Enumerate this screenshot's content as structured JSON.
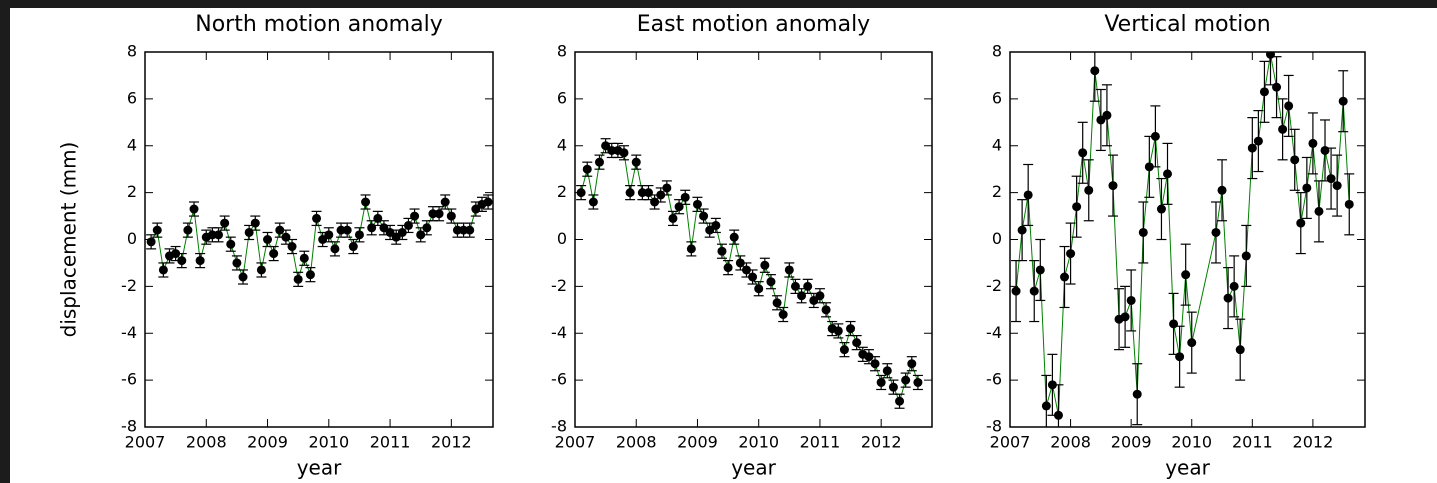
{
  "chart_data": [
    {
      "type": "errorbar",
      "title": "North motion anomaly",
      "xlabel": "year",
      "ylabel": "displacement (mm)",
      "x": [
        2007.1,
        2007.2,
        2007.3,
        2007.4,
        2007.5,
        2007.6,
        2007.7,
        2007.8,
        2007.9,
        2008.0,
        2008.1,
        2008.2,
        2008.3,
        2008.4,
        2008.5,
        2008.6,
        2008.7,
        2008.8,
        2008.9,
        2009.0,
        2009.1,
        2009.2,
        2009.3,
        2009.4,
        2009.5,
        2009.6,
        2009.7,
        2009.8,
        2009.9,
        2010.0,
        2010.1,
        2010.2,
        2010.3,
        2010.4,
        2010.5,
        2010.6,
        2010.7,
        2010.8,
        2010.9,
        2011.0,
        2011.1,
        2011.2,
        2011.3,
        2011.4,
        2011.5,
        2011.6,
        2011.7,
        2011.8,
        2011.9,
        2012.0,
        2012.1,
        2012.2,
        2012.3,
        2012.4,
        2012.5,
        2012.6
      ],
      "values": [
        -0.1,
        0.4,
        -1.3,
        -0.7,
        -0.6,
        -0.9,
        0.4,
        1.3,
        -0.9,
        0.1,
        0.2,
        0.2,
        0.7,
        -0.2,
        -1.0,
        -1.6,
        0.3,
        0.7,
        -1.3,
        0.0,
        -0.6,
        0.4,
        0.1,
        -0.3,
        -1.7,
        -0.8,
        -1.5,
        0.9,
        0.0,
        0.2,
        -0.4,
        0.4,
        0.4,
        -0.3,
        0.2,
        1.6,
        0.5,
        0.9,
        0.5,
        0.3,
        0.1,
        0.3,
        0.6,
        1.0,
        0.2,
        0.5,
        1.1,
        1.1,
        1.6,
        1.0,
        0.4,
        0.4,
        0.4,
        1.3,
        1.5,
        1.6
      ],
      "error": 0.3,
      "color": "#000000",
      "line_color": "#008000",
      "xlim": [
        2007,
        2012.68
      ],
      "ylim": [
        -8,
        8
      ],
      "xticks": [
        2007,
        2008,
        2009,
        2010,
        2011,
        2012
      ],
      "yticks": [
        -8,
        -6,
        -4,
        -2,
        0,
        2,
        4,
        6,
        8
      ]
    },
    {
      "type": "errorbar",
      "title": "East motion anomaly",
      "xlabel": "year",
      "x": [
        2007.1,
        2007.2,
        2007.3,
        2007.4,
        2007.5,
        2007.6,
        2007.7,
        2007.8,
        2007.9,
        2008.0,
        2008.1,
        2008.2,
        2008.3,
        2008.4,
        2008.5,
        2008.6,
        2008.7,
        2008.8,
        2008.9,
        2009.0,
        2009.1,
        2009.2,
        2009.3,
        2009.4,
        2009.5,
        2009.6,
        2009.7,
        2009.8,
        2009.9,
        2010.0,
        2010.1,
        2010.2,
        2010.3,
        2010.4,
        2010.5,
        2010.6,
        2010.7,
        2010.8,
        2010.9,
        2011.0,
        2011.1,
        2011.2,
        2011.3,
        2011.4,
        2011.5,
        2011.6,
        2011.7,
        2011.8,
        2011.9,
        2012.0,
        2012.1,
        2012.2,
        2012.3,
        2012.4,
        2012.5,
        2012.6
      ],
      "values": [
        2.0,
        3.0,
        1.6,
        3.3,
        4.0,
        3.8,
        3.8,
        3.7,
        2.0,
        3.3,
        2.0,
        2.0,
        1.6,
        1.9,
        2.2,
        0.9,
        1.4,
        1.8,
        -0.4,
        1.5,
        1.0,
        0.4,
        0.6,
        -0.5,
        -1.2,
        0.1,
        -1.0,
        -1.3,
        -1.6,
        -2.1,
        -1.1,
        -1.8,
        -2.7,
        -3.2,
        -1.3,
        -2.0,
        -2.4,
        -2.0,
        -2.6,
        -2.4,
        -3.0,
        -3.8,
        -3.9,
        -4.7,
        -3.8,
        -4.4,
        -4.9,
        -5.0,
        -5.3,
        -6.1,
        -5.6,
        -6.3,
        -6.9,
        -6.0,
        -5.3,
        -6.1
      ],
      "error": 0.3,
      "color": "#000000",
      "line_color": "#008000",
      "xlim": [
        2007,
        2012.83
      ],
      "ylim": [
        -8,
        8
      ],
      "xticks": [
        2007,
        2008,
        2009,
        2010,
        2011,
        2012
      ],
      "yticks": [
        -8,
        -6,
        -4,
        -2,
        0,
        2,
        4,
        6,
        8
      ]
    },
    {
      "type": "errorbar",
      "title": "Vertical motion",
      "xlabel": "year",
      "x": [
        2007.1,
        2007.2,
        2007.3,
        2007.4,
        2007.5,
        2007.6,
        2007.7,
        2007.8,
        2007.9,
        2008.0,
        2008.1,
        2008.2,
        2008.3,
        2008.4,
        2008.5,
        2008.6,
        2008.7,
        2008.8,
        2008.9,
        2009.0,
        2009.1,
        2009.2,
        2009.3,
        2009.4,
        2009.5,
        2009.6,
        2009.7,
        2009.8,
        2009.9,
        2010.0,
        2010.4,
        2010.5,
        2010.6,
        2010.7,
        2010.8,
        2010.9,
        2011.0,
        2011.1,
        2011.2,
        2011.3,
        2011.4,
        2011.5,
        2011.6,
        2011.7,
        2011.8,
        2011.9,
        2012.0,
        2012.1,
        2012.2,
        2012.3,
        2012.4,
        2012.5,
        2012.6
      ],
      "values": [
        -2.2,
        0.4,
        1.9,
        -2.2,
        -1.3,
        -7.1,
        -6.2,
        -7.5,
        -1.6,
        -0.6,
        1.4,
        3.7,
        2.1,
        7.2,
        5.1,
        5.3,
        2.3,
        -3.4,
        -3.3,
        -2.6,
        -6.6,
        0.3,
        3.1,
        4.4,
        1.3,
        2.8,
        -3.6,
        -5.0,
        -1.5,
        -4.4,
        0.3,
        2.1,
        -2.5,
        -2.0,
        -4.7,
        -0.7,
        3.9,
        4.2,
        6.3,
        7.9,
        6.5,
        4.7,
        5.7,
        3.4,
        0.7,
        2.2,
        4.1,
        1.2,
        3.8,
        2.6,
        2.3,
        5.9,
        1.5
      ],
      "error": 1.3,
      "color": "#000000",
      "line_color": "#008000",
      "xlim": [
        2007,
        2012.86
      ],
      "ylim": [
        -8,
        8
      ],
      "xticks": [
        2007,
        2008,
        2009,
        2010,
        2011,
        2012
      ],
      "yticks": [
        -8,
        -6,
        -4,
        -2,
        0,
        2,
        4,
        6,
        8
      ]
    }
  ]
}
